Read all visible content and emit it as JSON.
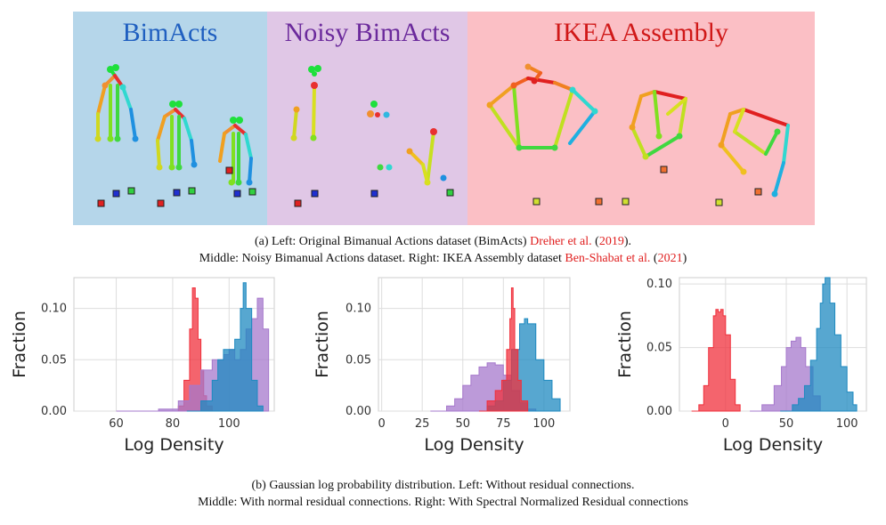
{
  "panels": [
    {
      "title": "BimActs",
      "bg": "#b5d6ea",
      "title_color": "#1f5fc0"
    },
    {
      "title": "Noisy  BimActs",
      "bg": "#e0c7e6",
      "title_color": "#6b2a9c"
    },
    {
      "title": "IKEA  Assembly",
      "bg": "#fbbfc5",
      "title_color": "#d01818"
    }
  ],
  "caption_a": {
    "line1_pre": "(a) Left: Original Bimanual Actions dataset (BimActs) ",
    "line1_ref": "Dreher et al.",
    "line1_open": " (",
    "line1_year": "2019",
    "line1_close": ").",
    "line2_pre": "Middle: Noisy Bimanual Actions dataset. Right: IKEA Assembly dataset ",
    "line2_ref": "Ben-Shabat et al.",
    "line2_open": " (",
    "line2_year": "2021",
    "line2_close": ")"
  },
  "caption_b": {
    "line1": "(b) Gaussian log probability distribution. Left: Without residual connections.",
    "line2": "Middle: With normal residual connections. Right: With Spectral Normalized Residual connections"
  },
  "colors": {
    "red": "#f0303c",
    "blue": "#1f8ac0",
    "purple": "#a678cc"
  },
  "chart_data": [
    {
      "type": "area",
      "xlabel": "Log Density",
      "ylabel": "Fraction",
      "xlim": [
        45,
        116
      ],
      "ylim": [
        0,
        0.13
      ],
      "xticks": [
        60,
        80,
        100
      ],
      "xtick_labels": [
        "60",
        "80",
        "100"
      ],
      "yticks": [
        0.0,
        0.05,
        0.1
      ],
      "ytick_labels": [
        "0.00",
        "0.05",
        "0.10"
      ],
      "grid": true,
      "series": [
        {
          "color": "red",
          "x": [
            80,
            82,
            84,
            86,
            87,
            88,
            89,
            90,
            91,
            92,
            94
          ],
          "values": [
            0.0,
            0.005,
            0.03,
            0.08,
            0.12,
            0.11,
            0.07,
            0.04,
            0.015,
            0.005,
            0.0
          ]
        },
        {
          "color": "purple",
          "x": [
            60,
            75,
            82,
            86,
            90,
            94,
            96,
            98,
            100,
            102,
            104,
            106,
            108,
            110,
            112,
            114
          ],
          "values": [
            0.0,
            0.002,
            0.01,
            0.025,
            0.04,
            0.05,
            0.05,
            0.055,
            0.06,
            0.05,
            0.06,
            0.08,
            0.09,
            0.11,
            0.08,
            0.0
          ]
        },
        {
          "color": "blue",
          "x": [
            85,
            90,
            94,
            96,
            98,
            100,
            102,
            104,
            105,
            106,
            108,
            110,
            112
          ],
          "values": [
            0.0,
            0.01,
            0.03,
            0.05,
            0.06,
            0.06,
            0.07,
            0.1,
            0.125,
            0.1,
            0.03,
            0.005,
            0.0
          ]
        }
      ]
    },
    {
      "type": "area",
      "xlabel": "Log Density",
      "ylabel": "Fraction",
      "xlim": [
        -2,
        116
      ],
      "ylim": [
        0,
        0.13
      ],
      "xticks": [
        0,
        25,
        50,
        75,
        100
      ],
      "xtick_labels": [
        "0",
        "25",
        "50",
        "75",
        "100"
      ],
      "yticks": [
        0.0,
        0.05,
        0.1
      ],
      "ytick_labels": [
        "0.00",
        "0.05",
        "0.10"
      ],
      "grid": true,
      "series": [
        {
          "color": "purple",
          "x": [
            30,
            40,
            45,
            50,
            55,
            60,
            65,
            70,
            75,
            80,
            85,
            90,
            95
          ],
          "values": [
            0.0,
            0.005,
            0.012,
            0.025,
            0.035,
            0.043,
            0.047,
            0.045,
            0.035,
            0.02,
            0.008,
            0.002,
            0.0
          ]
        },
        {
          "color": "blue",
          "x": [
            60,
            65,
            70,
            75,
            80,
            85,
            88,
            90,
            95,
            100,
            105,
            110
          ],
          "values": [
            0.0,
            0.005,
            0.01,
            0.03,
            0.06,
            0.085,
            0.09,
            0.085,
            0.05,
            0.03,
            0.012,
            0.0
          ]
        },
        {
          "color": "red",
          "x": [
            60,
            65,
            70,
            74,
            77,
            79,
            80,
            81,
            82,
            84,
            86,
            90
          ],
          "values": [
            0.0,
            0.01,
            0.02,
            0.03,
            0.06,
            0.09,
            0.12,
            0.1,
            0.06,
            0.03,
            0.01,
            0.0
          ]
        }
      ]
    },
    {
      "type": "area",
      "xlabel": "Log Density",
      "ylabel": "Fraction",
      "xlim": [
        -38,
        116
      ],
      "ylim": [
        0,
        0.105
      ],
      "xticks": [
        0,
        50,
        100
      ],
      "xtick_labels": [
        "0",
        "50",
        "100"
      ],
      "yticks": [
        0.0,
        0.05,
        0.1
      ],
      "ytick_labels": [
        "0.00",
        "0.05",
        "0.10"
      ],
      "grid": true,
      "series": [
        {
          "color": "red",
          "x": [
            -28,
            -22,
            -18,
            -14,
            -10,
            -8,
            -6,
            -4,
            -2,
            0,
            4,
            8,
            12
          ],
          "values": [
            0.0,
            0.005,
            0.02,
            0.05,
            0.075,
            0.08,
            0.078,
            0.08,
            0.075,
            0.06,
            0.025,
            0.005,
            0.0
          ]
        },
        {
          "color": "purple",
          "x": [
            20,
            30,
            40,
            46,
            50,
            54,
            58,
            62,
            66,
            72,
            78
          ],
          "values": [
            0.0,
            0.005,
            0.02,
            0.035,
            0.05,
            0.055,
            0.058,
            0.05,
            0.035,
            0.012,
            0.0
          ]
        },
        {
          "color": "blue",
          "x": [
            45,
            55,
            60,
            65,
            70,
            75,
            78,
            80,
            82,
            86,
            90,
            95,
            100,
            105,
            108
          ],
          "values": [
            0.0,
            0.005,
            0.01,
            0.02,
            0.04,
            0.065,
            0.085,
            0.1,
            0.105,
            0.085,
            0.06,
            0.035,
            0.015,
            0.005,
            0.0
          ]
        }
      ]
    }
  ]
}
